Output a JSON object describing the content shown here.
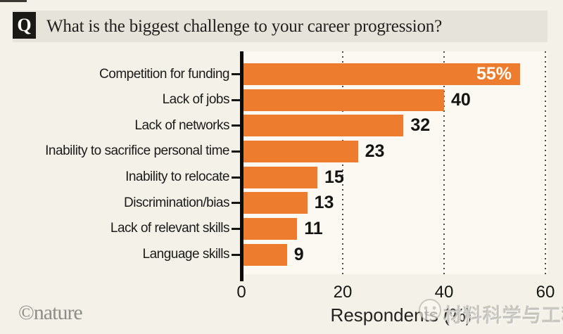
{
  "header": {
    "q_badge": "Q",
    "title": "What is the biggest challenge to your career progression?"
  },
  "chart_data": {
    "type": "bar",
    "orientation": "horizontal",
    "categories": [
      "Competition for funding",
      "Lack of jobs",
      "Lack of networks",
      "Inability to sacrifice personal time",
      "Inability to relocate",
      "Discrimination/bias",
      "Lack of relevant skills",
      "Language skills"
    ],
    "values": [
      55,
      40,
      32,
      23,
      15,
      13,
      11,
      9
    ],
    "value_labels": [
      "55%",
      "40",
      "32",
      "23",
      "15",
      "13",
      "11",
      "9"
    ],
    "xlabel": "Respondents (%)",
    "x_ticks": [
      0,
      20,
      40,
      60
    ],
    "xlim": [
      0,
      60
    ],
    "grid": "dotted-vertical",
    "legend": "none",
    "bar_color": "#ed7c2f",
    "first_value_label_inside_bar": true
  },
  "footer": {
    "credit": "©nature",
    "watermark_text": "材料科学与工程"
  },
  "colors": {
    "page_bg": "#f3f1e8",
    "header_strip": "#e6e4da",
    "q_box": "#191915",
    "plot_bg": "#fbf9f1",
    "bar": "#ed7c2f",
    "text": "#1b1b19",
    "grid_dot": "#4c4a44",
    "credit_grey": "#8e8d87",
    "inside_label": "#fdfcf7"
  }
}
